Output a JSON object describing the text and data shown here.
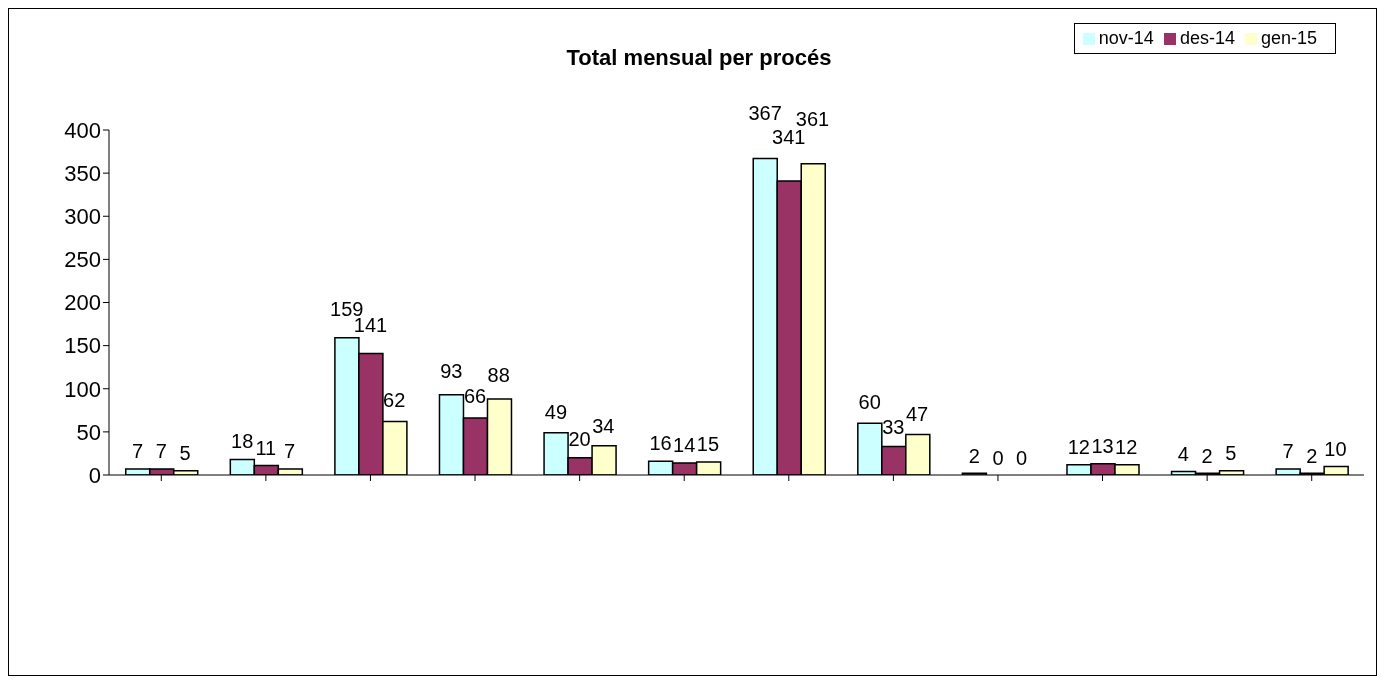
{
  "chart_data": {
    "type": "bar",
    "title": "Total mensual per procés",
    "categories": [
      null,
      null,
      null,
      null,
      null,
      null,
      null,
      null,
      null,
      null,
      null,
      null
    ],
    "series": [
      {
        "name": "nov-14",
        "color": "#ccffff",
        "values": [
          7,
          18,
          159,
          93,
          49,
          16,
          367,
          60,
          2,
          12,
          4,
          7
        ]
      },
      {
        "name": "des-14",
        "color": "#993366",
        "values": [
          7,
          11,
          141,
          66,
          20,
          14,
          341,
          33,
          0,
          13,
          2,
          2
        ]
      },
      {
        "name": "gen-15",
        "color": "#ffffcc",
        "values": [
          5,
          7,
          62,
          88,
          34,
          15,
          361,
          47,
          0,
          12,
          5,
          10
        ]
      }
    ],
    "ylim": [
      0,
      400
    ],
    "yticks": [
      0,
      50,
      100,
      150,
      200,
      250,
      300,
      350,
      400
    ],
    "legend": "top right",
    "data_labels": true
  }
}
